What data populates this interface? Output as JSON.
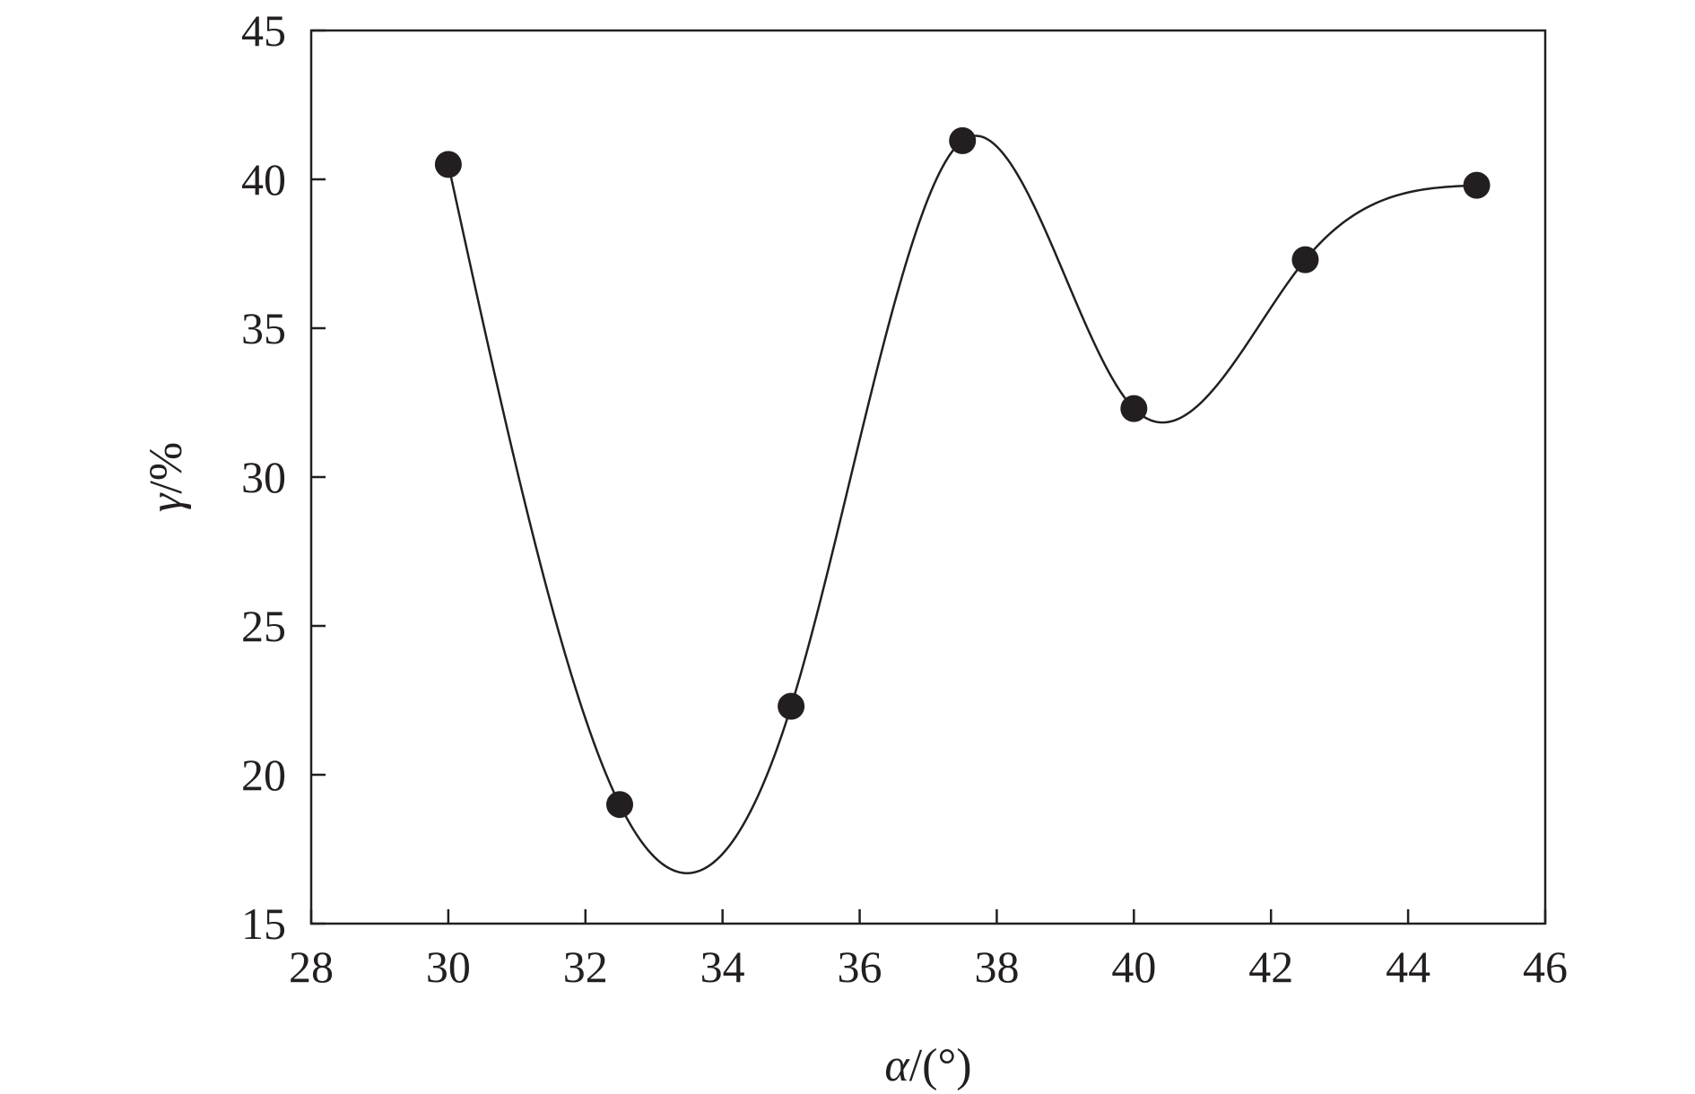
{
  "chart_data": {
    "type": "line",
    "x": [
      30,
      32.5,
      35,
      37.5,
      40,
      42.5,
      45
    ],
    "series": [
      {
        "values": [
          40.5,
          19.0,
          22.3,
          41.3,
          32.3,
          37.3,
          39.8
        ]
      }
    ],
    "xlim": [
      28,
      46
    ],
    "ylim": [
      15,
      45
    ],
    "xticks": [
      "28",
      "30",
      "32",
      "34",
      "36",
      "38",
      "40",
      "42",
      "44",
      "46"
    ],
    "yticks": [
      "15",
      "20",
      "25",
      "30",
      "35",
      "40",
      "45"
    ],
    "xlabel": {
      "symbol": "α",
      "rest": "/(°)"
    },
    "ylabel": {
      "symbol": "γ",
      "rest": "/%"
    },
    "smoothed_curve": true,
    "grid": false,
    "colors": {
      "ink": "#231f20",
      "background": "#ffffff"
    }
  }
}
